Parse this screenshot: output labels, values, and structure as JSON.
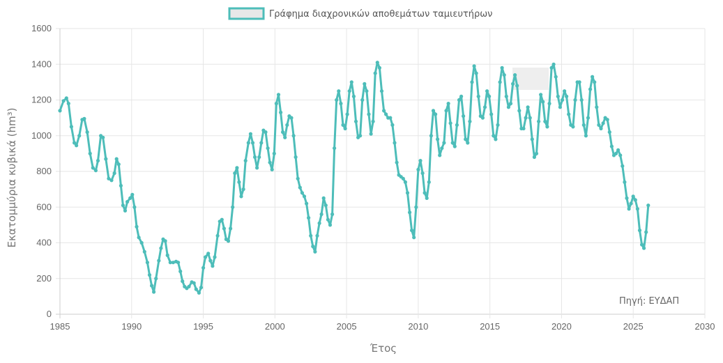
{
  "chart_data": {
    "type": "line",
    "title": "",
    "xlabel": "Έτος",
    "ylabel": "Εκατομμύρια κυβικά (hm³)",
    "xlim": [
      1985,
      2030
    ],
    "ylim": [
      0,
      1600
    ],
    "x_ticks": [
      "1985",
      "1990",
      "1995",
      "2000",
      "2005",
      "2010",
      "2015",
      "2020",
      "2025",
      "2030"
    ],
    "y_ticks": [
      "0",
      "200",
      "400",
      "600",
      "800",
      "1000",
      "1200",
      "1400",
      "1600"
    ],
    "grid": true,
    "legend": {
      "position": "top-center",
      "entries": [
        "Γράφημα διαχρονικών αποθεμάτων ταμιευτήρων"
      ]
    },
    "annotation": "Πηγή: ΕΥΔΑΠ",
    "colors": {
      "line": "#4dbdb9",
      "legend_fill": "#e8e8e8",
      "grid": "#e6e6e6",
      "highlight": "#eeeeee"
    },
    "series": [
      {
        "name": "Γράφημα διαχρονικών αποθεμάτων ταμιευτήρων",
        "points": [
          [
            1985.0,
            1140
          ],
          [
            1985.25,
            1195
          ],
          [
            1985.45,
            1210
          ],
          [
            1985.6,
            1180
          ],
          [
            1985.8,
            1050
          ],
          [
            1986.0,
            960
          ],
          [
            1986.15,
            945
          ],
          [
            1986.35,
            1000
          ],
          [
            1986.55,
            1090
          ],
          [
            1986.7,
            1095
          ],
          [
            1986.9,
            1020
          ],
          [
            1987.1,
            900
          ],
          [
            1987.3,
            820
          ],
          [
            1987.5,
            805
          ],
          [
            1987.65,
            860
          ],
          [
            1987.85,
            1000
          ],
          [
            1988.0,
            990
          ],
          [
            1988.2,
            870
          ],
          [
            1988.4,
            760
          ],
          [
            1988.6,
            750
          ],
          [
            1988.8,
            790
          ],
          [
            1988.95,
            870
          ],
          [
            1989.1,
            840
          ],
          [
            1989.25,
            720
          ],
          [
            1989.4,
            610
          ],
          [
            1989.55,
            580
          ],
          [
            1989.7,
            630
          ],
          [
            1989.9,
            650
          ],
          [
            1990.05,
            670
          ],
          [
            1990.2,
            600
          ],
          [
            1990.35,
            490
          ],
          [
            1990.5,
            430
          ],
          [
            1990.7,
            400
          ],
          [
            1990.9,
            350
          ],
          [
            1991.1,
            290
          ],
          [
            1991.25,
            220
          ],
          [
            1991.4,
            160
          ],
          [
            1991.55,
            125
          ],
          [
            1991.7,
            200
          ],
          [
            1991.9,
            300
          ],
          [
            1992.05,
            370
          ],
          [
            1992.2,
            420
          ],
          [
            1992.35,
            410
          ],
          [
            1992.5,
            330
          ],
          [
            1992.7,
            290
          ],
          [
            1992.9,
            290
          ],
          [
            1993.1,
            295
          ],
          [
            1993.25,
            290
          ],
          [
            1993.4,
            240
          ],
          [
            1993.55,
            185
          ],
          [
            1993.7,
            155
          ],
          [
            1993.85,
            145
          ],
          [
            1994.0,
            155
          ],
          [
            1994.2,
            180
          ],
          [
            1994.35,
            175
          ],
          [
            1994.5,
            140
          ],
          [
            1994.7,
            120
          ],
          [
            1994.85,
            150
          ],
          [
            1995.0,
            260
          ],
          [
            1995.15,
            320
          ],
          [
            1995.35,
            340
          ],
          [
            1995.5,
            300
          ],
          [
            1995.65,
            270
          ],
          [
            1995.8,
            320
          ],
          [
            1996.0,
            440
          ],
          [
            1996.15,
            520
          ],
          [
            1996.3,
            530
          ],
          [
            1996.45,
            480
          ],
          [
            1996.6,
            420
          ],
          [
            1996.75,
            410
          ],
          [
            1996.9,
            480
          ],
          [
            1997.05,
            600
          ],
          [
            1997.2,
            790
          ],
          [
            1997.35,
            820
          ],
          [
            1997.5,
            740
          ],
          [
            1997.65,
            660
          ],
          [
            1997.8,
            700
          ],
          [
            1997.95,
            860
          ],
          [
            1998.15,
            960
          ],
          [
            1998.3,
            1010
          ],
          [
            1998.45,
            960
          ],
          [
            1998.6,
            880
          ],
          [
            1998.75,
            820
          ],
          [
            1998.9,
            880
          ],
          [
            1999.05,
            960
          ],
          [
            1999.2,
            1030
          ],
          [
            1999.35,
            1020
          ],
          [
            1999.5,
            930
          ],
          [
            1999.65,
            850
          ],
          [
            1999.8,
            810
          ],
          [
            1999.95,
            900
          ],
          [
            2000.1,
            1180
          ],
          [
            2000.25,
            1230
          ],
          [
            2000.4,
            1130
          ],
          [
            2000.55,
            1020
          ],
          [
            2000.7,
            990
          ],
          [
            2000.85,
            1060
          ],
          [
            2001.0,
            1110
          ],
          [
            2001.15,
            1100
          ],
          [
            2001.3,
            1000
          ],
          [
            2001.45,
            880
          ],
          [
            2001.6,
            760
          ],
          [
            2001.75,
            710
          ],
          [
            2001.9,
            680
          ],
          [
            2002.05,
            660
          ],
          [
            2002.2,
            620
          ],
          [
            2002.35,
            540
          ],
          [
            2002.5,
            440
          ],
          [
            2002.65,
            380
          ],
          [
            2002.8,
            350
          ],
          [
            2002.95,
            440
          ],
          [
            2003.1,
            510
          ],
          [
            2003.25,
            560
          ],
          [
            2003.4,
            650
          ],
          [
            2003.55,
            610
          ],
          [
            2003.7,
            530
          ],
          [
            2003.85,
            500
          ],
          [
            2004.0,
            560
          ],
          [
            2004.15,
            930
          ],
          [
            2004.3,
            1200
          ],
          [
            2004.45,
            1250
          ],
          [
            2004.6,
            1180
          ],
          [
            2004.75,
            1060
          ],
          [
            2004.9,
            1040
          ],
          [
            2005.05,
            1120
          ],
          [
            2005.2,
            1250
          ],
          [
            2005.35,
            1300
          ],
          [
            2005.5,
            1220
          ],
          [
            2005.65,
            1080
          ],
          [
            2005.8,
            990
          ],
          [
            2005.95,
            1000
          ],
          [
            2006.1,
            1200
          ],
          [
            2006.25,
            1290
          ],
          [
            2006.4,
            1250
          ],
          [
            2006.55,
            1120
          ],
          [
            2006.7,
            1010
          ],
          [
            2006.85,
            1080
          ],
          [
            2007.0,
            1350
          ],
          [
            2007.15,
            1410
          ],
          [
            2007.3,
            1380
          ],
          [
            2007.45,
            1250
          ],
          [
            2007.6,
            1140
          ],
          [
            2007.75,
            1120
          ],
          [
            2007.9,
            1100
          ],
          [
            2008.05,
            1100
          ],
          [
            2008.2,
            1060
          ],
          [
            2008.35,
            960
          ],
          [
            2008.5,
            850
          ],
          [
            2008.65,
            780
          ],
          [
            2008.8,
            770
          ],
          [
            2008.95,
            760
          ],
          [
            2009.1,
            740
          ],
          [
            2009.25,
            680
          ],
          [
            2009.4,
            570
          ],
          [
            2009.55,
            470
          ],
          [
            2009.7,
            430
          ],
          [
            2009.85,
            600
          ],
          [
            2010.0,
            810
          ],
          [
            2010.15,
            860
          ],
          [
            2010.3,
            790
          ],
          [
            2010.45,
            680
          ],
          [
            2010.6,
            650
          ],
          [
            2010.75,
            740
          ],
          [
            2010.9,
            1000
          ],
          [
            2011.05,
            1140
          ],
          [
            2011.2,
            1120
          ],
          [
            2011.35,
            980
          ],
          [
            2011.5,
            890
          ],
          [
            2011.65,
            930
          ],
          [
            2011.8,
            960
          ],
          [
            2011.95,
            1140
          ],
          [
            2012.1,
            1180
          ],
          [
            2012.25,
            1070
          ],
          [
            2012.4,
            960
          ],
          [
            2012.55,
            940
          ],
          [
            2012.7,
            1060
          ],
          [
            2012.85,
            1200
          ],
          [
            2013.0,
            1220
          ],
          [
            2013.15,
            1110
          ],
          [
            2013.3,
            980
          ],
          [
            2013.45,
            960
          ],
          [
            2013.6,
            1080
          ],
          [
            2013.75,
            1300
          ],
          [
            2013.9,
            1390
          ],
          [
            2014.05,
            1350
          ],
          [
            2014.2,
            1220
          ],
          [
            2014.35,
            1110
          ],
          [
            2014.5,
            1100
          ],
          [
            2014.65,
            1160
          ],
          [
            2014.8,
            1250
          ],
          [
            2014.95,
            1220
          ],
          [
            2015.1,
            1120
          ],
          [
            2015.25,
            1000
          ],
          [
            2015.4,
            980
          ],
          [
            2015.55,
            1060
          ],
          [
            2015.7,
            1300
          ],
          [
            2015.85,
            1380
          ],
          [
            2016.0,
            1340
          ],
          [
            2016.15,
            1220
          ],
          [
            2016.3,
            1160
          ],
          [
            2016.45,
            1180
          ],
          [
            2016.6,
            1290
          ],
          [
            2016.75,
            1340
          ],
          [
            2016.9,
            1280
          ],
          [
            2017.05,
            1140
          ],
          [
            2017.2,
            1040
          ],
          [
            2017.35,
            1040
          ],
          [
            2017.5,
            1100
          ],
          [
            2017.65,
            1160
          ],
          [
            2017.8,
            1100
          ],
          [
            2017.95,
            980
          ],
          [
            2018.1,
            880
          ],
          [
            2018.25,
            900
          ],
          [
            2018.4,
            1080
          ],
          [
            2018.55,
            1230
          ],
          [
            2018.7,
            1190
          ],
          [
            2018.85,
            1080
          ],
          [
            2019.0,
            1050
          ],
          [
            2019.15,
            1180
          ],
          [
            2019.3,
            1380
          ],
          [
            2019.45,
            1400
          ],
          [
            2019.6,
            1330
          ],
          [
            2019.75,
            1220
          ],
          [
            2019.9,
            1160
          ],
          [
            2020.05,
            1200
          ],
          [
            2020.2,
            1250
          ],
          [
            2020.35,
            1220
          ],
          [
            2020.5,
            1120
          ],
          [
            2020.65,
            1060
          ],
          [
            2020.8,
            1050
          ],
          [
            2020.95,
            1200
          ],
          [
            2021.1,
            1300
          ],
          [
            2021.25,
            1300
          ],
          [
            2021.4,
            1200
          ],
          [
            2021.55,
            1060
          ],
          [
            2021.7,
            1000
          ],
          [
            2021.85,
            1100
          ],
          [
            2022.0,
            1260
          ],
          [
            2022.15,
            1330
          ],
          [
            2022.3,
            1300
          ],
          [
            2022.45,
            1160
          ],
          [
            2022.6,
            1060
          ],
          [
            2022.75,
            1040
          ],
          [
            2022.9,
            1070
          ],
          [
            2023.05,
            1100
          ],
          [
            2023.2,
            1090
          ],
          [
            2023.35,
            1020
          ],
          [
            2023.5,
            940
          ],
          [
            2023.65,
            890
          ],
          [
            2023.8,
            900
          ],
          [
            2023.95,
            920
          ],
          [
            2024.1,
            890
          ],
          [
            2024.25,
            830
          ],
          [
            2024.4,
            740
          ],
          [
            2024.55,
            650
          ],
          [
            2024.7,
            590
          ],
          [
            2024.85,
            620
          ],
          [
            2025.0,
            660
          ],
          [
            2025.15,
            640
          ],
          [
            2025.3,
            590
          ],
          [
            2025.45,
            470
          ],
          [
            2025.6,
            390
          ],
          [
            2025.75,
            370
          ],
          [
            2025.9,
            460
          ],
          [
            2026.05,
            610
          ]
        ]
      }
    ]
  }
}
